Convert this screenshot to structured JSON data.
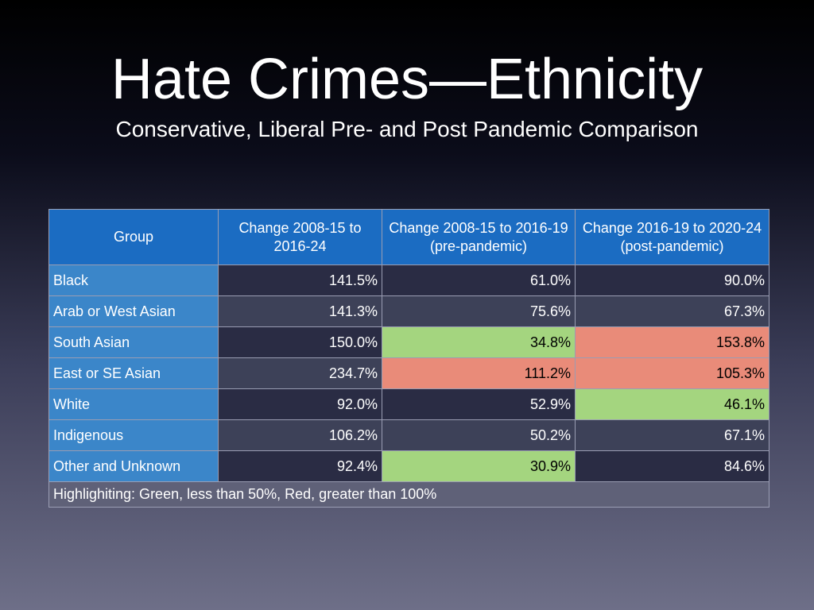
{
  "header": {
    "title": "Hate Crimes—Ethnicity",
    "subtitle": "Conservative, Liberal Pre- and Post Pandemic Comparison"
  },
  "table": {
    "columns": [
      "Group",
      "Change 2008-15 to 2016-24",
      "Change 2008-15 to 2016-19 (pre-pandemic)",
      "Change 2016-19 to 2020-24 (post-pandemic)"
    ],
    "rows": [
      [
        "Black",
        "141.5%",
        "61.0%",
        "90.0%"
      ],
      [
        "Arab or West Asian",
        "141.3%",
        "75.6%",
        "67.3%"
      ],
      [
        "South Asian",
        "150.0%",
        "34.8%",
        "153.8%"
      ],
      [
        "East or SE Asian",
        "234.7%",
        "111.2%",
        "105.3%"
      ],
      [
        "White",
        "92.0%",
        "52.9%",
        "46.1%"
      ],
      [
        "Indigenous",
        "106.2%",
        "50.2%",
        "67.1%"
      ],
      [
        "Other and Unknown",
        "92.4%",
        "30.9%",
        "84.6%"
      ]
    ],
    "highlights": [
      [
        null,
        null,
        null,
        null
      ],
      [
        null,
        null,
        null,
        null
      ],
      [
        null,
        null,
        "#a4d57f",
        "#e98b79"
      ],
      [
        null,
        null,
        "#e98b79",
        "#e98b79"
      ],
      [
        null,
        null,
        null,
        "#a4d57f"
      ],
      [
        null,
        null,
        null,
        null
      ],
      [
        null,
        null,
        "#a4d57f",
        null
      ]
    ],
    "footnote": "Highlighiting: Green, less than 50%, Red, greater than 100%"
  }
}
